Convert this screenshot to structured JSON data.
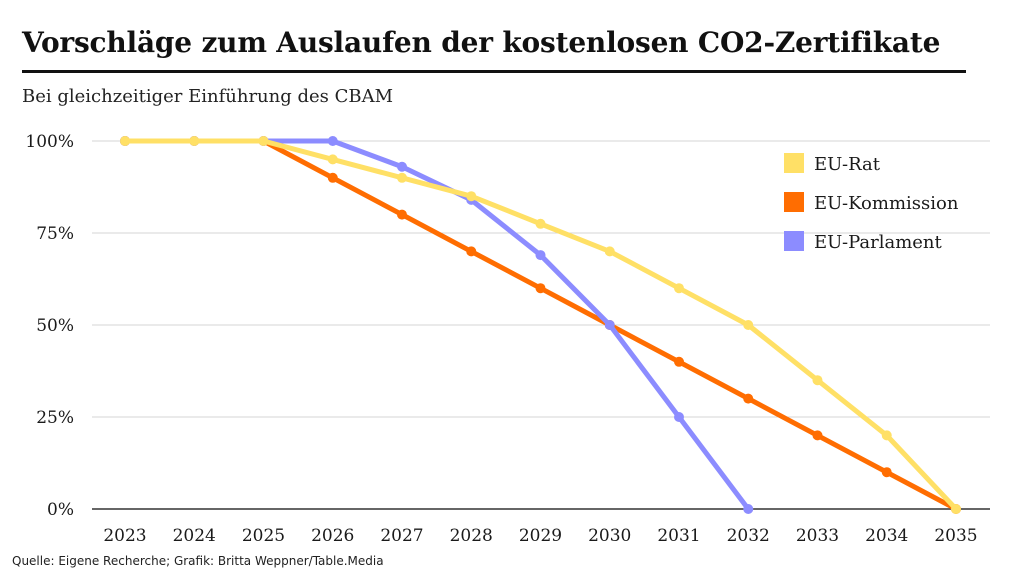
{
  "chart_data": {
    "type": "line",
    "title": "Vorschläge zum Auslaufen der kostenlosen CO2-Zertifikate",
    "subtitle": "Bei gleichzeitiger Einführung des CBAM",
    "xlabel": "",
    "ylabel": "",
    "ylim": [
      0,
      100
    ],
    "y_ticks": [
      {
        "value": 0,
        "label": "0%"
      },
      {
        "value": 25,
        "label": "25%"
      },
      {
        "value": 50,
        "label": "50%"
      },
      {
        "value": 75,
        "label": "75%"
      },
      {
        "value": 100,
        "label": "100%"
      }
    ],
    "categories": [
      "2023",
      "2024",
      "2025",
      "2026",
      "2027",
      "2028",
      "2029",
      "2030",
      "2031",
      "2032",
      "2033",
      "2034",
      "2035"
    ],
    "legend_position": "top-right",
    "grid": true,
    "series": [
      {
        "name": "EU-Kommission",
        "color": "#ff6d01",
        "values": [
          100,
          100,
          100,
          90,
          80,
          70,
          60,
          50,
          40,
          30,
          20,
          10,
          0
        ]
      },
      {
        "name": "EU-Parlament",
        "color": "#8c8cff",
        "values": [
          100,
          100,
          100,
          100,
          93,
          84,
          69,
          50,
          25,
          0,
          null,
          null,
          null
        ]
      },
      {
        "name": "EU-Rat",
        "color": "#ffe066",
        "values": [
          100,
          100,
          100,
          95,
          90,
          85,
          77.5,
          70,
          60,
          50,
          35,
          20,
          0
        ]
      }
    ],
    "legend_order": [
      "EU-Rat",
      "EU-Kommission",
      "EU-Parlament"
    ]
  },
  "source": "Quelle: Eigene Recherche; Grafik: Britta Weppner/Table.Media"
}
